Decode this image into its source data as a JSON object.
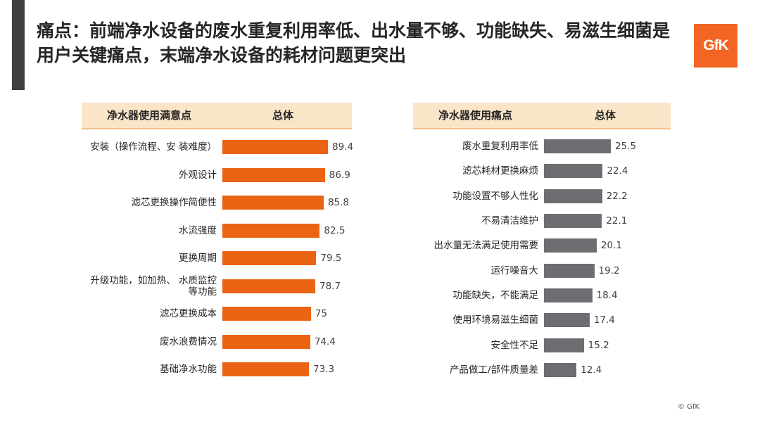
{
  "header": {
    "title": "痛点：前端净水设备的废水重复利用率低、出水量不够、功能缺失、易滋生细菌是用户关键痛点，末端净水设备的耗材问题更突出",
    "logo_text": "GfK"
  },
  "footer": {
    "copyright": "© GfK"
  },
  "colors": {
    "left_bar": "#ea6414",
    "right_bar": "#6d6e71",
    "header_bg": "#fbe5c8",
    "logo": "#f26522"
  },
  "chart_data": [
    {
      "type": "bar",
      "orientation": "horizontal",
      "category_header": "净水器使用满意点",
      "series_header": "总体",
      "categories": [
        "安装（操作流程、安 装难度）",
        "外观设计",
        "滤芯更换操作简便性",
        "水流强度",
        "更换周期",
        "升级功能，如加热、 水质监控等功能",
        "滤芯更换成本",
        "废水浪费情况",
        "基础净水功能"
      ],
      "values": [
        89.4,
        86.9,
        85.8,
        82.5,
        79.5,
        78.7,
        75,
        74.4,
        73.3
      ],
      "value_labels": [
        "89.4",
        "86.9",
        "85.8",
        "82.5",
        "79.5",
        "78.7",
        "75",
        "74.4",
        "73.3"
      ]
    },
    {
      "type": "bar",
      "orientation": "horizontal",
      "category_header": "净水器使用痛点",
      "series_header": "总体",
      "categories": [
        "废水重复利用率低",
        "滤芯耗材更换麻烦",
        "功能设置不够人性化",
        "不易清洁维护",
        "出水量无法满足使用需要",
        "运行噪音大",
        "功能缺失，不能满足",
        "使用环境易滋生细菌",
        "安全性不足",
        "产品做工/部件质量差"
      ],
      "values": [
        25.5,
        22.4,
        22.2,
        22.1,
        20.1,
        19.2,
        18.4,
        17.4,
        15.2,
        12.4
      ],
      "value_labels": [
        "25.5",
        "22.4",
        "22.2",
        "22.1",
        "20.1",
        "19.2",
        "18.4",
        "17.4",
        "15.2",
        "12.4"
      ]
    }
  ]
}
